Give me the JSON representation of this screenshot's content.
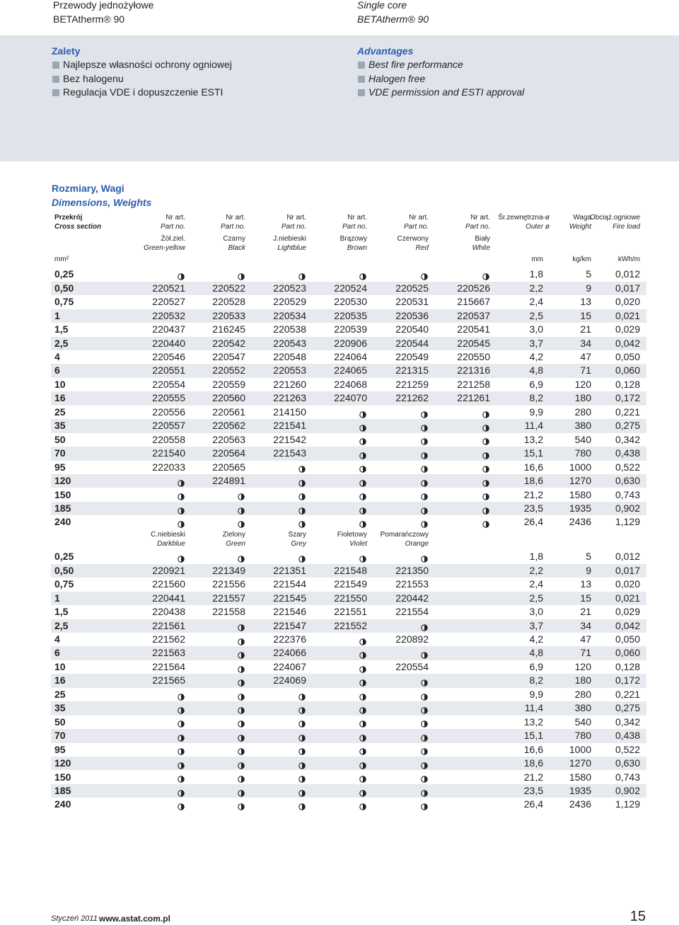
{
  "header": {
    "left": [
      "Przewody jednożyłowe",
      "BETAtherm® 90"
    ],
    "right": [
      "Single core",
      "BETAtherm® 90"
    ]
  },
  "advantages": {
    "pl": {
      "title": "Zalety",
      "items": [
        "Najlepsze własności ochrony ogniowej",
        "Bez halogenu",
        "Regulacja VDE i dopuszczenie ESTI"
      ]
    },
    "en": {
      "title": "Advantages",
      "items": [
        "Best fire performance",
        "Halogen free",
        "VDE permission and ESTI approval"
      ]
    }
  },
  "section": {
    "title_pl": "Rozmiary, Wagi",
    "title_en": "Dimensions, Weights"
  },
  "table": {
    "columns": [
      {
        "pl": "Przekrój",
        "en": "Cross section"
      },
      {
        "pl": "Nr art.",
        "en": "Part no."
      },
      {
        "pl": "Nr art.",
        "en": "Part no."
      },
      {
        "pl": "Nr art.",
        "en": "Part no."
      },
      {
        "pl": "Nr art.",
        "en": "Part no."
      },
      {
        "pl": "Nr art.",
        "en": "Part no."
      },
      {
        "pl": "Nr art.",
        "en": "Part no."
      },
      {
        "pl": "Śr.zewnętrzna-ø",
        "en": "Outer ø"
      },
      {
        "pl": "Waga",
        "en": "Weight"
      },
      {
        "pl": "Obciąż.ogniowe",
        "en": "Fire load"
      }
    ],
    "units": [
      "mm²",
      "mm",
      "kg/km",
      "kWh/m"
    ],
    "blocks": [
      {
        "colors": [
          {
            "pl": "Żół.ziel.",
            "en": "Green-yellow"
          },
          {
            "pl": "Czarny",
            "en": "Black"
          },
          {
            "pl": "J.niebieski",
            "en": "Lightblue"
          },
          {
            "pl": "Brązowy",
            "en": "Brown"
          },
          {
            "pl": "Czerwony",
            "en": "Red"
          },
          {
            "pl": "Biały",
            "en": "White"
          }
        ],
        "rows": [
          [
            "0,25",
            null,
            null,
            null,
            null,
            null,
            null,
            "1,8",
            "5",
            "0,012"
          ],
          [
            "0,50",
            "220521",
            "220522",
            "220523",
            "220524",
            "220525",
            "220526",
            "2,2",
            "9",
            "0,017"
          ],
          [
            "0,75",
            "220527",
            "220528",
            "220529",
            "220530",
            "220531",
            "215667",
            "2,4",
            "13",
            "0,020"
          ],
          [
            "1",
            "220532",
            "220533",
            "220534",
            "220535",
            "220536",
            "220537",
            "2,5",
            "15",
            "0,021"
          ],
          [
            "1,5",
            "220437",
            "216245",
            "220538",
            "220539",
            "220540",
            "220541",
            "3,0",
            "21",
            "0,029"
          ],
          [
            "2,5",
            "220440",
            "220542",
            "220543",
            "220906",
            "220544",
            "220545",
            "3,7",
            "34",
            "0,042"
          ],
          [
            "4",
            "220546",
            "220547",
            "220548",
            "224064",
            "220549",
            "220550",
            "4,2",
            "47",
            "0,050"
          ],
          [
            "6",
            "220551",
            "220552",
            "220553",
            "224065",
            "221315",
            "221316",
            "4,8",
            "71",
            "0,060"
          ],
          [
            "10",
            "220554",
            "220559",
            "221260",
            "224068",
            "221259",
            "221258",
            "6,9",
            "120",
            "0,128"
          ],
          [
            "16",
            "220555",
            "220560",
            "221263",
            "224070",
            "221262",
            "221261",
            "8,2",
            "180",
            "0,172"
          ],
          [
            "25",
            "220556",
            "220561",
            "214150",
            null,
            null,
            null,
            "9,9",
            "280",
            "0,221"
          ],
          [
            "35",
            "220557",
            "220562",
            "221541",
            null,
            null,
            null,
            "11,4",
            "380",
            "0,275"
          ],
          [
            "50",
            "220558",
            "220563",
            "221542",
            null,
            null,
            null,
            "13,2",
            "540",
            "0,342"
          ],
          [
            "70",
            "221540",
            "220564",
            "221543",
            null,
            null,
            null,
            "15,1",
            "780",
            "0,438"
          ],
          [
            "95",
            "222033",
            "220565",
            null,
            null,
            null,
            null,
            "16,6",
            "1000",
            "0,522"
          ],
          [
            "120",
            null,
            "224891",
            null,
            null,
            null,
            null,
            "18,6",
            "1270",
            "0,630"
          ],
          [
            "150",
            null,
            null,
            null,
            null,
            null,
            null,
            "21,2",
            "1580",
            "0,743"
          ],
          [
            "185",
            null,
            null,
            null,
            null,
            null,
            null,
            "23,5",
            "1935",
            "0,902"
          ],
          [
            "240",
            null,
            null,
            null,
            null,
            null,
            null,
            "26,4",
            "2436",
            "1,129"
          ]
        ]
      },
      {
        "colors": [
          {
            "pl": "C.niebieski",
            "en": "Darkblue"
          },
          {
            "pl": "Zielony",
            "en": "Green"
          },
          {
            "pl": "Szary",
            "en": "Grey"
          },
          {
            "pl": "Fioletowy",
            "en": "Violet"
          },
          {
            "pl": "Pomarańczowy",
            "en": "Orange"
          }
        ],
        "rows": [
          [
            "0,25",
            null,
            null,
            null,
            null,
            null,
            "1,8",
            "5",
            "0,012"
          ],
          [
            "0,50",
            "220921",
            "221349",
            "221351",
            "221548",
            "221350",
            "2,2",
            "9",
            "0,017"
          ],
          [
            "0,75",
            "221560",
            "221556",
            "221544",
            "221549",
            "221553",
            "2,4",
            "13",
            "0,020"
          ],
          [
            "1",
            "220441",
            "221557",
            "221545",
            "221550",
            "220442",
            "2,5",
            "15",
            "0,021"
          ],
          [
            "1,5",
            "220438",
            "221558",
            "221546",
            "221551",
            "221554",
            "3,0",
            "21",
            "0,029"
          ],
          [
            "2,5",
            "221561",
            null,
            "221547",
            "221552",
            null,
            "3,7",
            "34",
            "0,042"
          ],
          [
            "4",
            "221562",
            null,
            "222376",
            null,
            "220892",
            "4,2",
            "47",
            "0,050"
          ],
          [
            "6",
            "221563",
            null,
            "224066",
            null,
            null,
            "4,8",
            "71",
            "0,060"
          ],
          [
            "10",
            "221564",
            null,
            "224067",
            null,
            "220554",
            "6,9",
            "120",
            "0,128"
          ],
          [
            "16",
            "221565",
            null,
            "224069",
            null,
            null,
            "8,2",
            "180",
            "0,172"
          ],
          [
            "25",
            null,
            null,
            null,
            null,
            null,
            "9,9",
            "280",
            "0,221"
          ],
          [
            "35",
            null,
            null,
            null,
            null,
            null,
            "11,4",
            "380",
            "0,275"
          ],
          [
            "50",
            null,
            null,
            null,
            null,
            null,
            "13,2",
            "540",
            "0,342"
          ],
          [
            "70",
            null,
            null,
            null,
            null,
            null,
            "15,1",
            "780",
            "0,438"
          ],
          [
            "95",
            null,
            null,
            null,
            null,
            null,
            "16,6",
            "1000",
            "0,522"
          ],
          [
            "120",
            null,
            null,
            null,
            null,
            null,
            "18,6",
            "1270",
            "0,630"
          ],
          [
            "150",
            null,
            null,
            null,
            null,
            null,
            "21,2",
            "1580",
            "0,743"
          ],
          [
            "185",
            null,
            null,
            null,
            null,
            null,
            "23,5",
            "1935",
            "0,902"
          ],
          [
            "240",
            null,
            null,
            null,
            null,
            null,
            "26,4",
            "2436",
            "1,129"
          ]
        ]
      }
    ]
  },
  "footer": {
    "date": "Styczeń 2011",
    "url": "www.astat.com.pl",
    "page": "15"
  }
}
